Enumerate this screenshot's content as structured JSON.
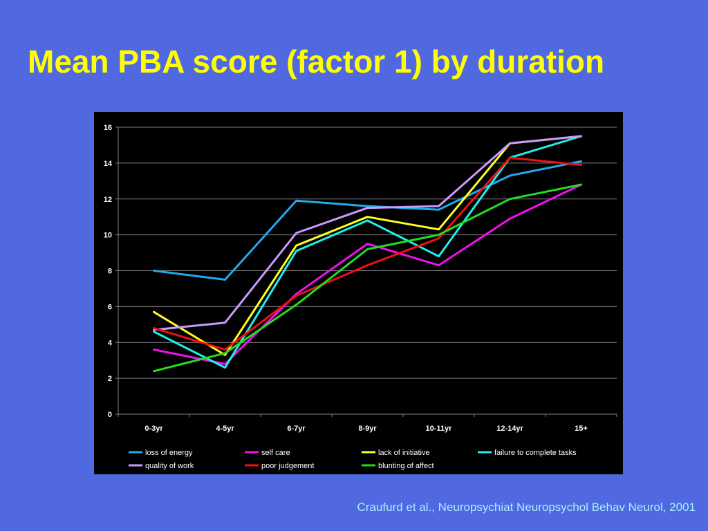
{
  "slide": {
    "title": "Mean PBA score (factor 1) by duration",
    "citation": "Craufurd et al., Neuropsychiat Neuropsychol Behav Neurol, 2001"
  },
  "colors": {
    "background": "#5068e0",
    "title": "#ffff00",
    "citation": "#a8f0ff",
    "plot_background": "#000000",
    "grid": "#808080"
  },
  "chart_data": {
    "type": "line",
    "categories": [
      "0-3yr",
      "4-5yr",
      "6-7yr",
      "8-9yr",
      "10-11yr",
      "12-14yr",
      "15+"
    ],
    "ylim": [
      0,
      16
    ],
    "yticks": [
      0,
      2,
      4,
      6,
      8,
      10,
      12,
      14,
      16
    ],
    "grid": true,
    "legend_position": "bottom",
    "series": [
      {
        "name": "loss of energy",
        "color": "#22aaee",
        "values": [
          8.0,
          7.5,
          11.9,
          11.6,
          11.4,
          13.3,
          14.1
        ]
      },
      {
        "name": "self care",
        "color": "#ee11ee",
        "values": [
          3.6,
          2.8,
          6.7,
          9.5,
          8.3,
          10.9,
          12.8
        ]
      },
      {
        "name": "lack of initiative",
        "color": "#ffff22",
        "values": [
          5.7,
          3.3,
          9.4,
          11.0,
          10.3,
          15.1,
          15.5
        ]
      },
      {
        "name": "failure to complete tasks",
        "color": "#22eeee",
        "values": [
          4.6,
          2.6,
          9.1,
          10.8,
          8.8,
          14.3,
          15.5
        ]
      },
      {
        "name": "quality of work",
        "color": "#cc99ff",
        "values": [
          4.7,
          5.1,
          10.1,
          11.5,
          11.6,
          15.1,
          15.5
        ]
      },
      {
        "name": "poor judgement",
        "color": "#ee1111",
        "values": [
          4.8,
          3.6,
          6.6,
          8.3,
          9.8,
          14.3,
          13.9
        ]
      },
      {
        "name": "blunting of affect",
        "color": "#22dd22",
        "values": [
          2.4,
          3.4,
          6.1,
          9.2,
          10.0,
          12.0,
          12.8
        ]
      }
    ]
  }
}
